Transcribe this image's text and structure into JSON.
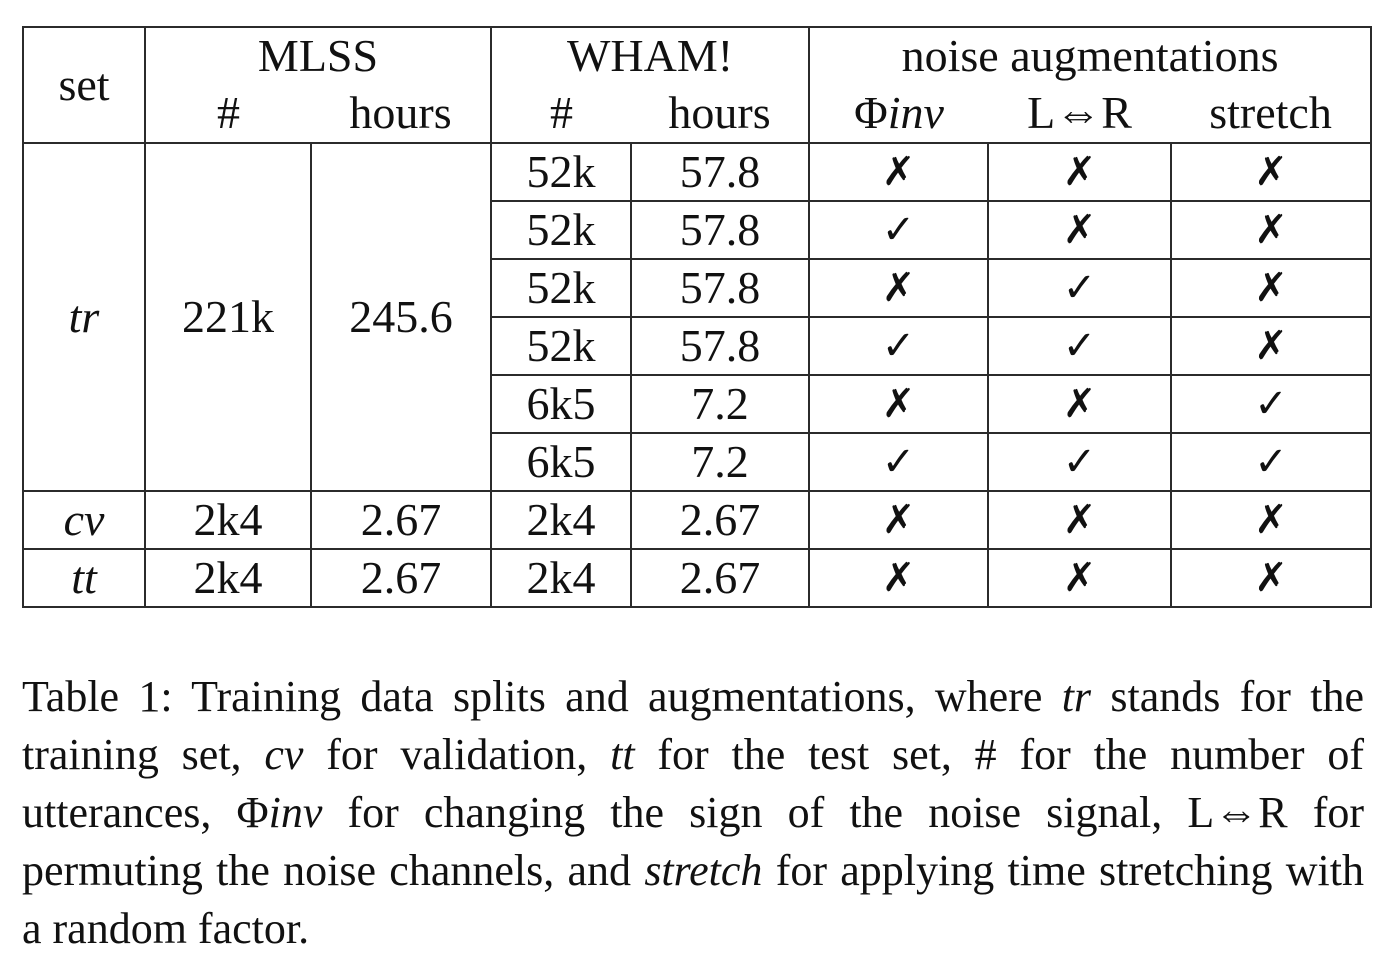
{
  "table": {
    "header": {
      "set": "set",
      "mlss": "MLSS",
      "wham": "WHAM!",
      "noise": "noise augmentations",
      "count": "#",
      "hours": "hours",
      "phi_symbol": "Φ",
      "phi_text": "inv",
      "lr": "L⇔R",
      "stretch": "stretch"
    },
    "tr": {
      "set": "tr",
      "mlss_count": "221k",
      "mlss_hours": "245.6",
      "rows": [
        {
          "wham_count": "52k",
          "wham_hours": "57.8",
          "phi_inv": "✗",
          "lr": "✗",
          "stretch": "✗"
        },
        {
          "wham_count": "52k",
          "wham_hours": "57.8",
          "phi_inv": "✓",
          "lr": "✗",
          "stretch": "✗"
        },
        {
          "wham_count": "52k",
          "wham_hours": "57.8",
          "phi_inv": "✗",
          "lr": "✓",
          "stretch": "✗"
        },
        {
          "wham_count": "52k",
          "wham_hours": "57.8",
          "phi_inv": "✓",
          "lr": "✓",
          "stretch": "✗"
        },
        {
          "wham_count": "6k5",
          "wham_hours": "7.2",
          "phi_inv": "✗",
          "lr": "✗",
          "stretch": "✓"
        },
        {
          "wham_count": "6k5",
          "wham_hours": "7.2",
          "phi_inv": "✓",
          "lr": "✓",
          "stretch": "✓"
        }
      ]
    },
    "cv": {
      "set": "cv",
      "mlss_count": "2k4",
      "mlss_hours": "2.67",
      "wham_count": "2k4",
      "wham_hours": "2.67",
      "phi_inv": "✗",
      "lr": "✗",
      "stretch": "✗"
    },
    "tt": {
      "set": "tt",
      "mlss_count": "2k4",
      "mlss_hours": "2.67",
      "wham_count": "2k4",
      "wham_hours": "2.67",
      "phi_inv": "✗",
      "lr": "✗",
      "stretch": "✗"
    }
  },
  "caption": {
    "p1": "Table 1: Training data splits and augmentations, where ",
    "tr": "tr",
    "p2": " stands for the training set, ",
    "cv": "cv",
    "p3": " for validation, ",
    "tt": "tt",
    "p4": " for the test set, # for the number of utterances, ",
    "phi_symbol": "Φ",
    "phi_text": "inv",
    "p5": " for changing the sign of the noise signal, L⇔R for permuting the noise channels, and ",
    "stretch": "stretch",
    "p6": " for applying time stretching with a random factor."
  }
}
